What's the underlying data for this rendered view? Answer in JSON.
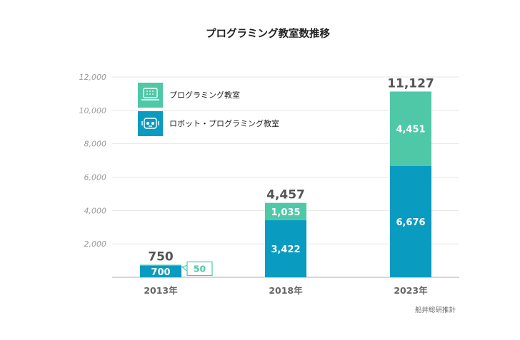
{
  "chart_data": {
    "type": "bar",
    "stacked": true,
    "title": "プログラミング教室数推移",
    "categories": [
      "2013年",
      "2018年",
      "2023年"
    ],
    "series": [
      {
        "name": "ロボット・プログラミング教室",
        "values": [
          700,
          3422,
          6676
        ],
        "color": "#0a9bc0"
      },
      {
        "name": "プログラミング教室",
        "values": [
          50,
          1035,
          4451
        ],
        "color": "#4fc8a8"
      }
    ],
    "totals": [
      750,
      4457,
      11127
    ],
    "data_labels": {
      "bottom": [
        "700",
        "3,422",
        "6,676"
      ],
      "top": [
        "50",
        "1,035",
        "4,451"
      ],
      "totals": [
        "750",
        "4,457",
        "11,127"
      ]
    },
    "ylim": [
      0,
      12000
    ],
    "yticks": [
      {
        "value": 12000,
        "label": "12,000"
      },
      {
        "value": 10000,
        "label": "10,000"
      },
      {
        "value": 8000,
        "label": "8,000"
      },
      {
        "value": 6000,
        "label": "6,000"
      },
      {
        "value": 4000,
        "label": "4,000"
      },
      {
        "value": 2000,
        "label": "2,000"
      }
    ],
    "grid": true,
    "legend": [
      {
        "label": "プログラミング教室",
        "icon": "laptop-icon",
        "color": "#4fc8a8"
      },
      {
        "label": "ロボット・プログラミング教室",
        "icon": "robot-icon",
        "color": "#0a9bc0"
      }
    ],
    "legend_position": "top-left",
    "source": "船井総研推計"
  }
}
